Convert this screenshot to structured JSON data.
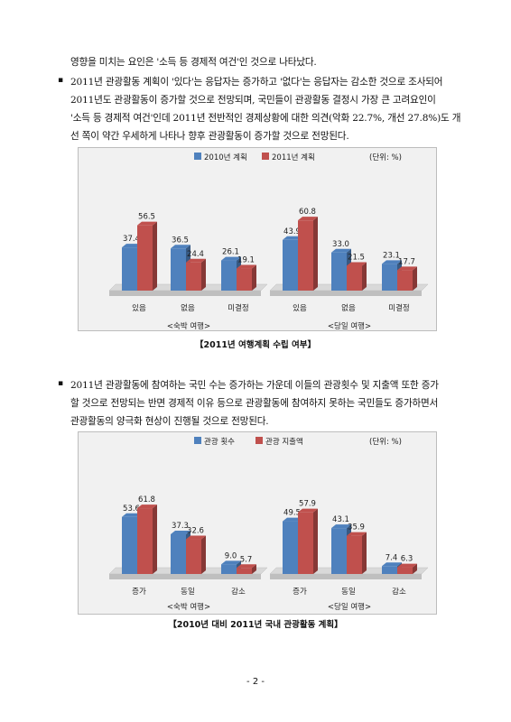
{
  "para1": {
    "lines": [
      "영향을 미치는 요인은 '소득 등 경제적 여건'인 것으로 나타났다.",
      "2011년 관광활동 계획이 '있다'는 응답자는 증가하고 '없다'는 응답자는 감소한 것으로 조사되어",
      "2011년도 관광활동이 증가할 것으로 전망되며, 국민들이 관광활동 결정시 가장 큰 고려요인이",
      "'소득 등 경제적 여건'인데 2011년 전반적인 경제상황에 대한 의견(악화 22.7%, 개선 27.8%)도 개",
      "선 쪽이 약간 우세하게 나타나 향후 관광활동이 증가할 것으로 전망된다."
    ]
  },
  "para2": {
    "lines": [
      "2011년 관광활동에 참여하는 국민 수는 증가하는 가운데 이들의 관광횟수 및 지출액 또한 증가",
      "할 것으로 전망되는 반면 경제적 이유 등으로 관광활동에 참여하지 못하는 국민들도 증가하면서",
      "관광활동의 양극화 현상이 진행될 것으로 전망된다."
    ]
  },
  "bullet_symbol": "▪",
  "chart_data": [
    {
      "type": "bar",
      "unit_label": "(단위: %)",
      "series": [
        {
          "name": "2010년 계획",
          "color": "#4f81bd"
        },
        {
          "name": "2011년 계획",
          "color": "#c0504d"
        }
      ],
      "groups": [
        {
          "label": "<숙박 여행>",
          "categories": [
            "있음",
            "없음",
            "미결정"
          ],
          "values": [
            [
              37.4,
              56.5
            ],
            [
              36.5,
              24.4
            ],
            [
              26.1,
              19.1
            ]
          ]
        },
        {
          "label": "<당일 여행>",
          "categories": [
            "있음",
            "없음",
            "미결정"
          ],
          "values": [
            [
              43.9,
              60.8
            ],
            [
              33.0,
              21.5
            ],
            [
              23.1,
              17.7
            ]
          ]
        }
      ],
      "value_labels": [
        [
          "37.4",
          "56.5"
        ],
        [
          "36.5",
          "24.4"
        ],
        [
          "26.1",
          "19.1"
        ],
        [
          "43.9",
          "60.8"
        ],
        [
          "33.0",
          "21.5"
        ],
        [
          "23.1",
          "17.7"
        ]
      ],
      "caption": "【2011년 여행계획 수립 여부】"
    },
    {
      "type": "bar",
      "unit_label": "(단위: %)",
      "series": [
        {
          "name": "관광 횟수",
          "color": "#4f81bd"
        },
        {
          "name": "관광 지출액",
          "color": "#c0504d"
        }
      ],
      "groups": [
        {
          "label": "<숙박 여행>",
          "categories": [
            "증가",
            "동일",
            "감소"
          ],
          "values": [
            [
              53.6,
              61.8
            ],
            [
              37.3,
              32.6
            ],
            [
              9.0,
              5.7
            ]
          ]
        },
        {
          "label": "<당일 여행>",
          "categories": [
            "증가",
            "동일",
            "감소"
          ],
          "values": [
            [
              49.5,
              57.9
            ],
            [
              43.1,
              35.9
            ],
            [
              7.4,
              6.3
            ]
          ]
        }
      ],
      "value_labels": [
        [
          "53.6",
          "61.8"
        ],
        [
          "37.3",
          "32.6"
        ],
        [
          "9.0",
          "5.7"
        ],
        [
          "49.5",
          "57.9"
        ],
        [
          "43.1",
          "35.9"
        ],
        [
          "7.4",
          "6.3"
        ]
      ],
      "caption": "【2010년 대비 2011년 국내 관광활동 계획】"
    }
  ],
  "page_number": "- 2 -"
}
